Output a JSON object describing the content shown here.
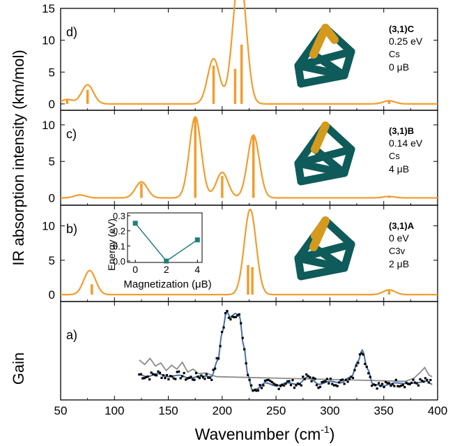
{
  "figure": {
    "ylabel": "IR absorption intensity (km/mol)",
    "gain_label": "Gain",
    "xlabel_main": "Wavenumber (cm",
    "xlabel_sup": "-1",
    "xlabel_close": ")",
    "x_ticks": [
      50,
      100,
      150,
      200,
      250,
      300,
      350,
      400
    ],
    "xlim": [
      50,
      400
    ]
  },
  "colors": {
    "ir": "#f39c2d",
    "fit": "#4a6fa5",
    "gray": "#8c8c8c",
    "teal": "#0e5b5a",
    "gold": "#d49a1e",
    "inset_line": "#1f7f7b"
  },
  "panels": [
    {
      "label": "d)",
      "ylim": [
        -1,
        15
      ],
      "yticks": [
        0,
        5,
        10,
        15
      ],
      "info": [
        "(3,1)C",
        "0.25 eV",
        "Cs",
        "0 μB"
      ],
      "peaks": [
        {
          "x": 56,
          "h": 0.8
        },
        {
          "x": 75,
          "h": 2.2
        },
        {
          "x": 192,
          "h": 6.0
        },
        {
          "x": 212,
          "h": 5.5
        },
        {
          "x": 218,
          "h": 9.3
        },
        {
          "x": 355,
          "h": 0.5
        }
      ],
      "envelope_sigma": 5.5,
      "envelope": [
        [
          56,
          0.7
        ],
        [
          75,
          3.0
        ],
        [
          192,
          7.1
        ],
        [
          213,
          9.0
        ],
        [
          218,
          13.8
        ],
        [
          355,
          0.5
        ]
      ]
    },
    {
      "label": "c)",
      "ylim": [
        -1,
        12
      ],
      "yticks": [
        0,
        5,
        10
      ],
      "info": [
        "(3,1)B",
        "0.14 eV",
        "Cs",
        "4 μB"
      ],
      "peaks": [
        {
          "x": 125,
          "h": 2.0
        },
        {
          "x": 175,
          "h": 11.0
        },
        {
          "x": 200,
          "h": 3.0
        },
        {
          "x": 229,
          "h": 8.5
        },
        {
          "x": 355,
          "h": 0.2
        }
      ],
      "envelope_sigma": 5.5,
      "envelope": [
        [
          68,
          0.4
        ],
        [
          125,
          2.2
        ],
        [
          175,
          11.1
        ],
        [
          200,
          3.5
        ],
        [
          229,
          8.6
        ],
        [
          355,
          0.2
        ]
      ]
    },
    {
      "label": "b)",
      "ylim": [
        -1,
        13
      ],
      "yticks": [
        0,
        5,
        10
      ],
      "info": [
        "(3,1)A",
        "0 eV",
        "C3v",
        "2 μB"
      ],
      "peaks": [
        {
          "x": 79,
          "h": 1.5
        },
        {
          "x": 224,
          "h": 4.3
        },
        {
          "x": 228,
          "h": 4.0
        },
        {
          "x": 355,
          "h": 0.6
        }
      ],
      "envelope_sigma": 5.5,
      "envelope": [
        [
          77,
          3.5
        ],
        [
          226,
          12.4
        ],
        [
          355,
          0.7
        ]
      ]
    }
  ],
  "inset": {
    "xlabel": "Magnetization (μB)",
    "ylabel": "Energy (eV)",
    "x": [
      0,
      2,
      4
    ],
    "y": [
      0.25,
      0.0,
      0.14
    ],
    "xticks": [
      0,
      2,
      4
    ],
    "yticks": [
      0.0,
      0.1,
      0.2,
      0.3
    ],
    "xlim": [
      -0.5,
      4.3
    ],
    "ylim": [
      0,
      0.3
    ]
  },
  "chart_data": {
    "type": "line",
    "title": "",
    "xlabel": "Wavenumber (cm-1)",
    "ylabel": "IR absorption intensity (km/mol)",
    "xlim": [
      50,
      400
    ],
    "panels": [
      {
        "label": "d)",
        "structure": "(3,1)C",
        "energy": "0.25 eV",
        "symmetry": "Cs",
        "moment": "0 μB",
        "ylim": [
          -1,
          15
        ],
        "stick_x": [
          56,
          75,
          192,
          212,
          218,
          355
        ],
        "stick_y": [
          0.8,
          2.2,
          6.0,
          5.5,
          9.3,
          0.5
        ]
      },
      {
        "label": "c)",
        "structure": "(3,1)B",
        "energy": "0.14 eV",
        "symmetry": "Cs",
        "moment": "4 μB",
        "ylim": [
          -1,
          12
        ],
        "stick_x": [
          125,
          175,
          200,
          229,
          355
        ],
        "stick_y": [
          2.0,
          11.0,
          3.0,
          8.5,
          0.2
        ]
      },
      {
        "label": "b)",
        "structure": "(3,1)A",
        "energy": "0 eV",
        "symmetry": "C3v",
        "moment": "2 μB",
        "ylim": [
          -1,
          13
        ],
        "stick_x": [
          79,
          224,
          228,
          355
        ],
        "stick_y": [
          1.5,
          4.3,
          4.0,
          0.6
        ]
      },
      {
        "label": "a)",
        "ylabel": "Gain",
        "series": [
          {
            "style": "markers + blue fit",
            "x": [
              123,
              130,
              140,
              150,
              160,
              170,
              180,
              190,
              196,
              200,
              204,
              208,
              212,
              216,
              220,
              224,
              228,
              232,
              240,
              250,
              260,
              270,
              280,
              290,
              300,
              310,
              320,
              326,
              330,
              335,
              340,
              350,
              355,
              360,
              370,
              380,
              390,
              395
            ],
            "y": [
              0.23,
              0.2,
              0.24,
              0.2,
              0.22,
              0.18,
              0.21,
              0.2,
              0.42,
              0.78,
              1.05,
              0.98,
              1.03,
              1.0,
              0.6,
              0.22,
              0.02,
              0.04,
              0.12,
              0.08,
              0.12,
              0.1,
              0.2,
              0.1,
              0.14,
              0.12,
              0.2,
              0.4,
              0.55,
              0.3,
              0.1,
              0.08,
              0.1,
              0.12,
              0.11,
              0.12,
              0.14,
              0.1
            ]
          },
          {
            "style": "gray experimental trace",
            "x": [
              123,
              128,
              133,
              138,
              143,
              148,
              153,
              158,
              163,
              168,
              173,
              178,
              185,
              190,
              195
            ],
            "y": [
              0.42,
              0.36,
              0.44,
              0.34,
              0.38,
              0.28,
              0.35,
              0.3,
              0.39,
              0.26,
              0.3,
              0.24,
              0.25,
              0.22,
              0.2
            ]
          }
        ]
      }
    ],
    "inset": {
      "type": "line",
      "xlabel": "Magnetization (μB)",
      "ylabel": "Energy (eV)",
      "x": [
        0,
        2,
        4
      ],
      "y": [
        0.25,
        0.0,
        0.14
      ]
    }
  }
}
